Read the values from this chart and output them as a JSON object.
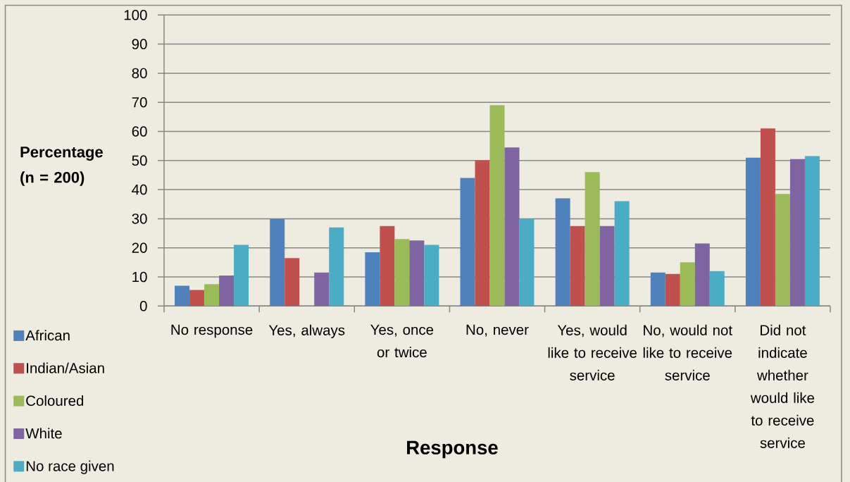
{
  "chart_data": {
    "type": "bar",
    "xlabel": "Response",
    "ylabel": "Percentage (n = 200)",
    "categories": [
      "No response",
      "Yes, always",
      "Yes, once or twice",
      "No, never",
      "Yes, would like to receive service",
      "No, would not like to receive service",
      "Did not indicate whether would like to receive service"
    ],
    "series": [
      {
        "name": "African",
        "color": "#4f81bd",
        "values": [
          7,
          30,
          18.5,
          44,
          37,
          11.5,
          51
        ]
      },
      {
        "name": "Indian/Asian",
        "color": "#c0504d",
        "values": [
          5.5,
          16.5,
          27.5,
          50,
          27.5,
          11,
          61
        ]
      },
      {
        "name": "Coloured",
        "color": "#9bbb59",
        "values": [
          7.5,
          0,
          23,
          69,
          46,
          15,
          38.5
        ]
      },
      {
        "name": "White",
        "color": "#8064a2",
        "values": [
          10.5,
          11.5,
          22.5,
          54.5,
          27.5,
          21.5,
          50.5
        ]
      },
      {
        "name": "No race given",
        "color": "#4bacc6",
        "values": [
          21,
          27,
          21,
          30,
          36,
          12,
          51.5
        ]
      }
    ],
    "ylim": [
      0,
      100
    ],
    "yticks": [
      0,
      10,
      20,
      30,
      40,
      50,
      60,
      70,
      80,
      90,
      100
    ],
    "grid": "y",
    "legend": "bottom left"
  }
}
